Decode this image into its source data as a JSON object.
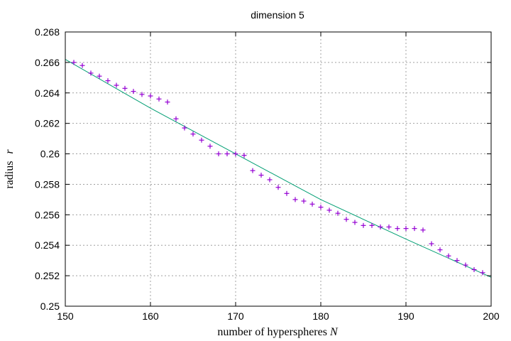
{
  "chart_data": {
    "type": "scatter",
    "title": "dimension 5",
    "xlabel": "number of hyperspheres",
    "xlabel_var": "N",
    "ylabel": "radius",
    "ylabel_var": "r",
    "xlim": [
      150,
      200
    ],
    "ylim": [
      0.25,
      0.268
    ],
    "xticks": [
      150,
      160,
      170,
      180,
      190,
      200
    ],
    "xtick_labels": [
      "150",
      "160",
      "170",
      "180",
      "190",
      "200"
    ],
    "yticks": [
      0.25,
      0.252,
      0.254,
      0.256,
      0.258,
      0.26,
      0.262,
      0.264,
      0.266,
      0.268
    ],
    "ytick_labels": [
      "0.25",
      "0.252",
      "0.254",
      "0.256",
      "0.258",
      "0.26",
      "0.262",
      "0.264",
      "0.266",
      "0.268"
    ],
    "grid": true,
    "colors": {
      "points": "#9400d3",
      "fit": "#009e73"
    },
    "series": [
      {
        "kind": "points",
        "marker": "+",
        "x": [
          151,
          152,
          153,
          154,
          155,
          156,
          157,
          158,
          159,
          160,
          161,
          162,
          163,
          164,
          165,
          166,
          167,
          168,
          169,
          170,
          171,
          172,
          173,
          174,
          175,
          176,
          177,
          178,
          179,
          180,
          181,
          182,
          183,
          184,
          185,
          186,
          187,
          188,
          189,
          190,
          191,
          192,
          193,
          194,
          195,
          196,
          197,
          198,
          199
        ],
        "y": [
          0.266,
          0.2658,
          0.2653,
          0.2651,
          0.2648,
          0.2645,
          0.2643,
          0.2641,
          0.2639,
          0.2638,
          0.2636,
          0.2634,
          0.2623,
          0.2617,
          0.2613,
          0.2609,
          0.2605,
          0.26,
          0.26,
          0.26,
          0.2599,
          0.2589,
          0.2586,
          0.2583,
          0.2578,
          0.2574,
          0.257,
          0.2569,
          0.2567,
          0.2565,
          0.2563,
          0.2561,
          0.2557,
          0.2555,
          0.2553,
          0.2553,
          0.2552,
          0.2552,
          0.2551,
          0.2551,
          0.2551,
          0.255,
          0.2541,
          0.2537,
          0.2533,
          0.253,
          0.2527,
          0.2524,
          0.2522
        ]
      },
      {
        "kind": "line",
        "x": [
          150,
          160,
          170,
          180,
          190,
          200
        ],
        "y": [
          0.2662,
          0.263,
          0.26,
          0.257,
          0.2544,
          0.2519
        ]
      }
    ]
  }
}
